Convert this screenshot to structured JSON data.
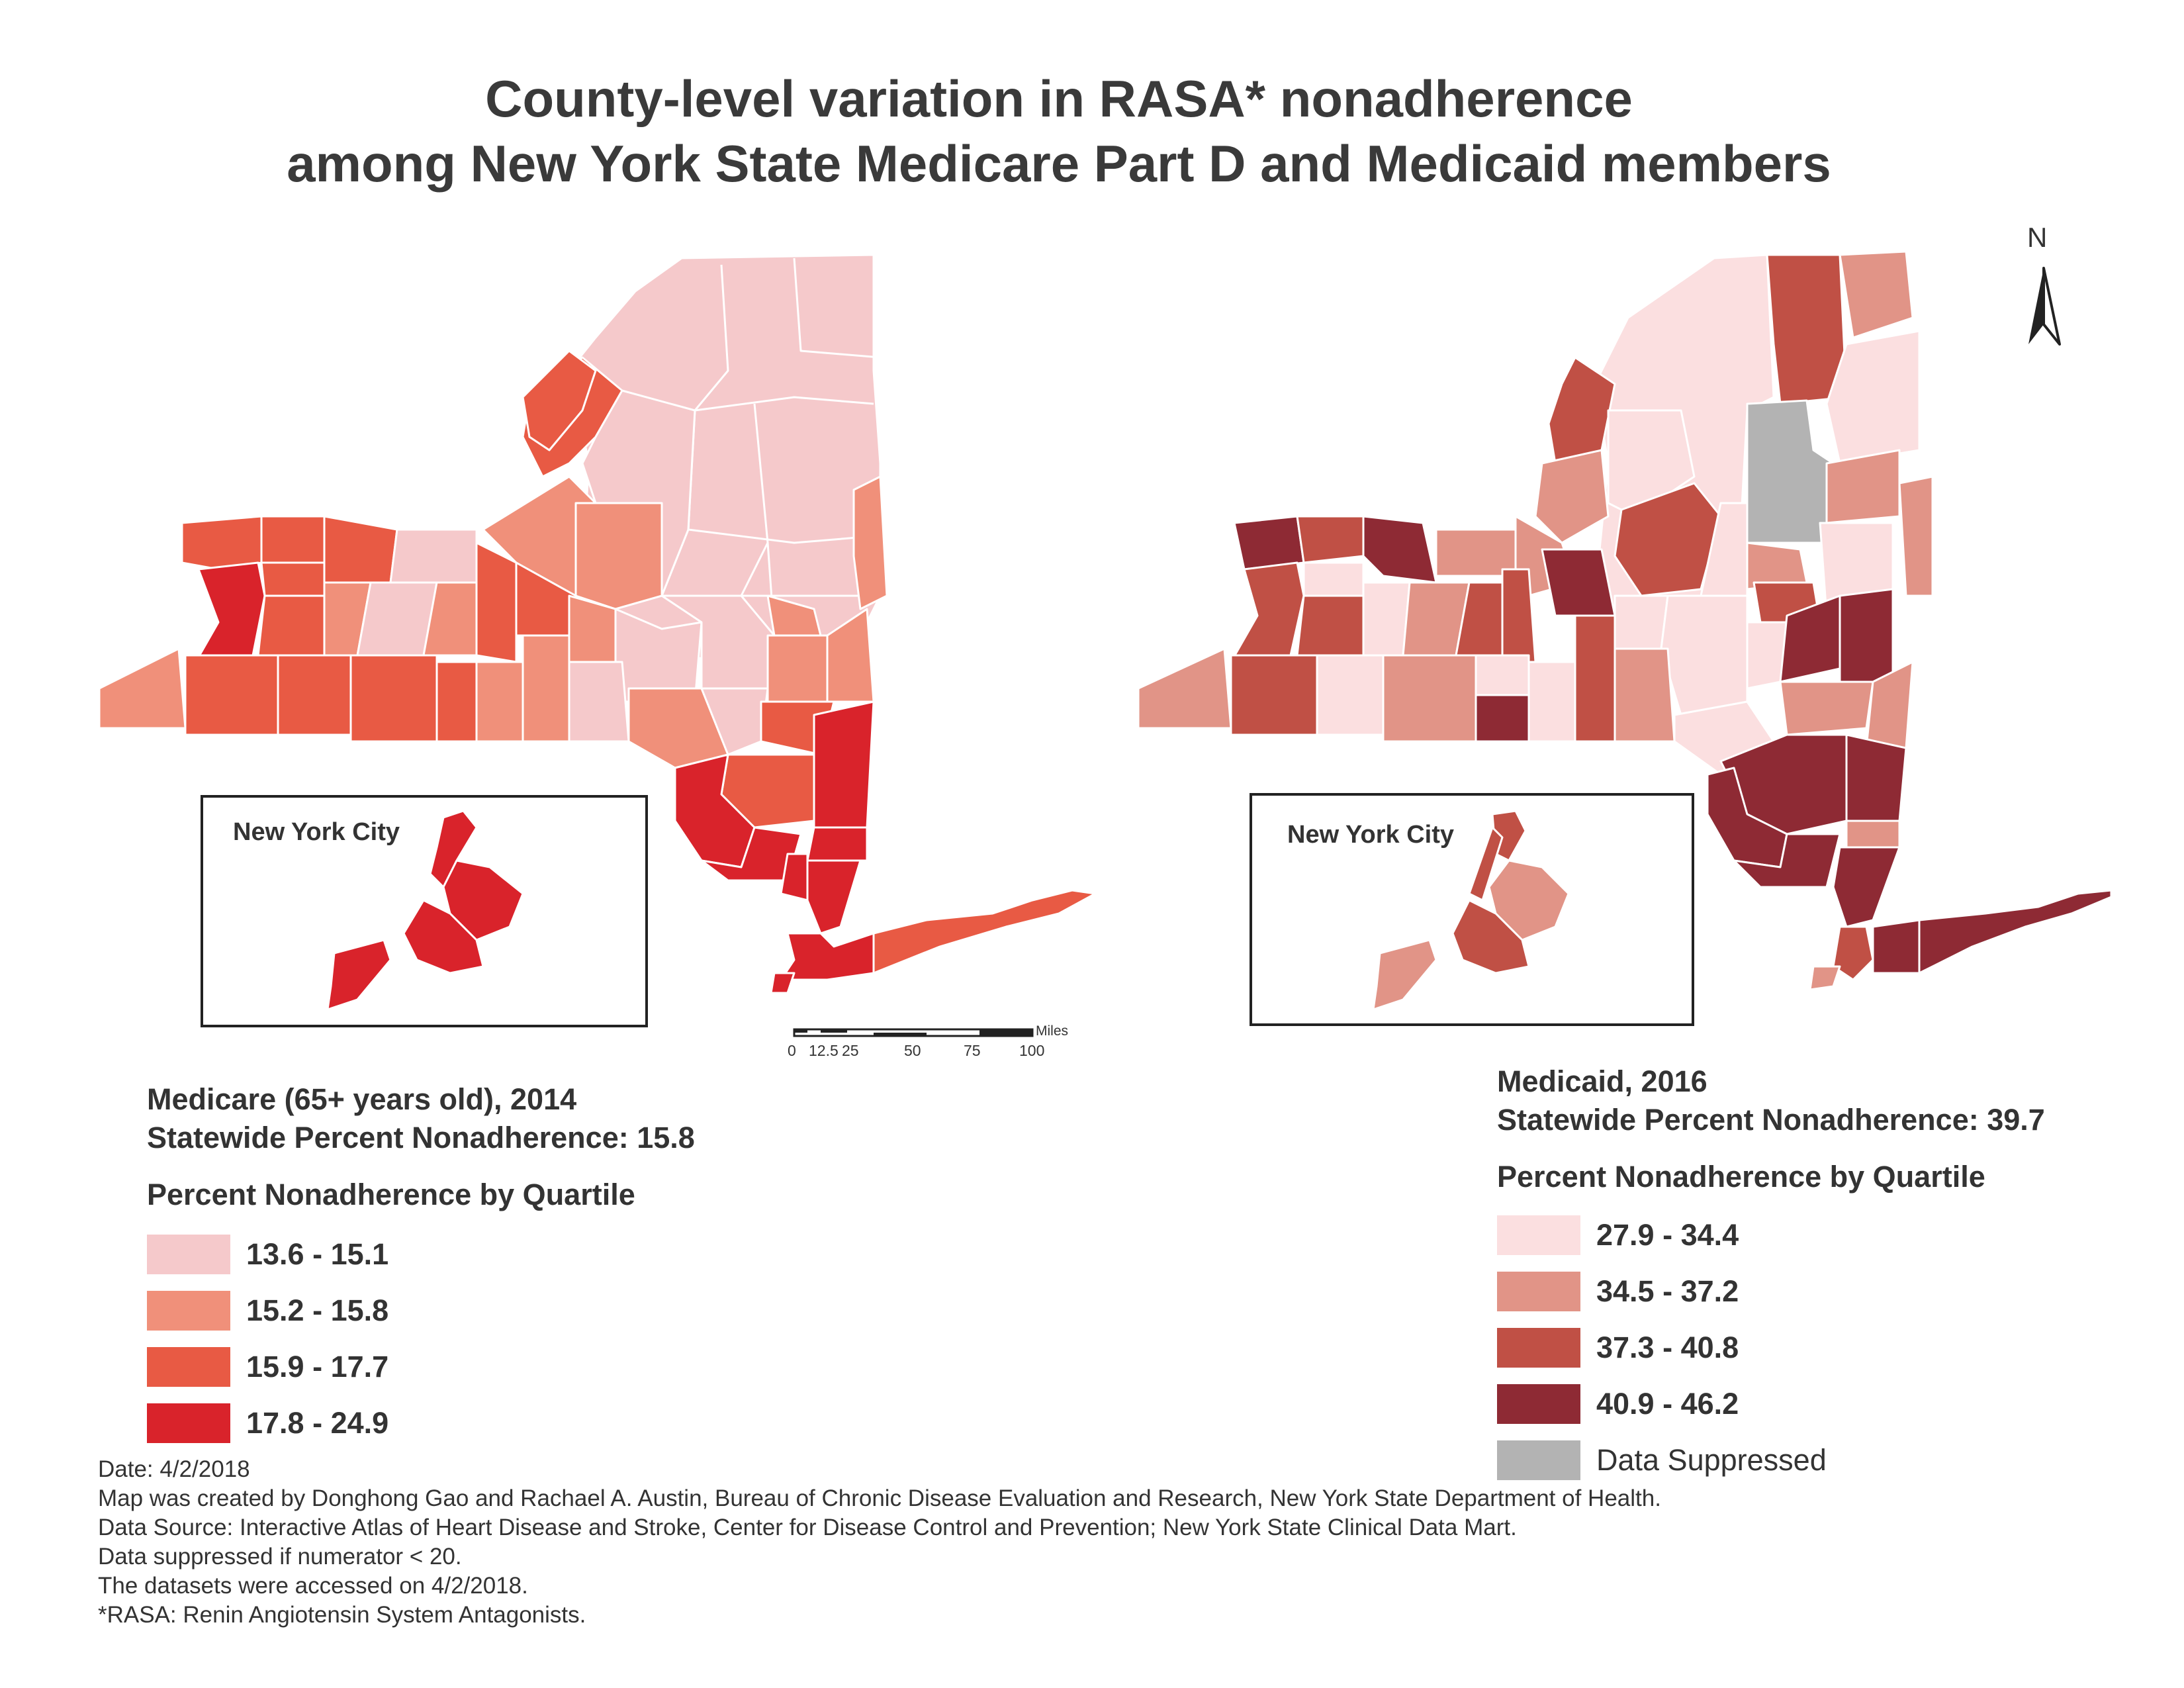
{
  "title": {
    "line1": "County-level variation in RASA* nonadherence",
    "line2": "among New York State Medicare Part D and Medicaid members"
  },
  "north_arrow": {
    "label": "N",
    "icon": "north-arrow-icon"
  },
  "scale_bar": {
    "unit": "Miles",
    "ticks": [
      "0",
      "12.5",
      "25",
      "50",
      "75",
      "100"
    ]
  },
  "maps": {
    "medicare": {
      "inset_label": "New York City",
      "title": "Medicare (65+ years old), 2014",
      "statewide": "Statewide Percent Nonadherence: 15.8",
      "legend_title": "Percent Nonadherence by Quartile",
      "legend": [
        {
          "label": "13.6 - 15.1",
          "color": "#f5c9cb"
        },
        {
          "label": "15.2 - 15.8",
          "color": "#f0907a"
        },
        {
          "label": "15.9 - 17.7",
          "color": "#e85a44"
        },
        {
          "label": "17.8 - 24.9",
          "color": "#d9232b"
        }
      ]
    },
    "medicaid": {
      "inset_label": "New York City",
      "title": "Medicaid, 2016",
      "statewide": "Statewide Percent Nonadherence: 39.7",
      "legend_title": "Percent Nonadherence by Quartile",
      "legend": [
        {
          "label": "27.9 - 34.4",
          "color": "#fbdfe0"
        },
        {
          "label": "34.5 - 37.2",
          "color": "#e19487"
        },
        {
          "label": "37.3 - 40.8",
          "color": "#c05045"
        },
        {
          "label": "40.9 - 46.2",
          "color": "#8e2a34"
        },
        {
          "label": "Data Suppressed",
          "color": "#b3b3b3"
        }
      ]
    }
  },
  "notes": [
    "Date: 4/2/2018",
    "Map was created by Donghong Gao and Rachael A. Austin, Bureau of Chronic Disease Evaluation and Research, New York State Department of Health.",
    "Data Source: Interactive Atlas of Heart Disease and Stroke, Center for Disease Control and Prevention; New York State Clinical Data Mart.",
    "Data suppressed if numerator < 20.",
    "The datasets were accessed on 4/2/2018.",
    "*RASA: Renin Angiotensin System Antagonists."
  ]
}
